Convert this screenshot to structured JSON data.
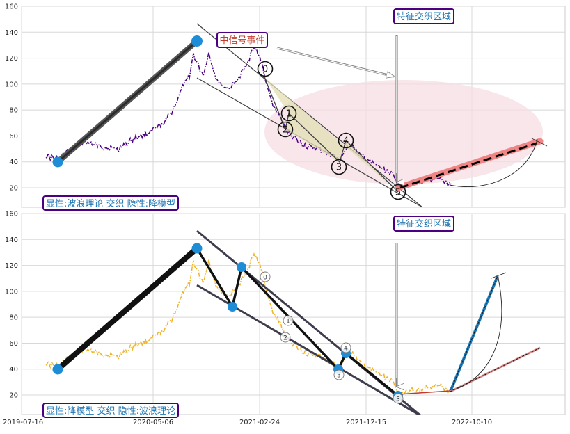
{
  "chart_data": [
    {
      "type": "line",
      "panel": "top",
      "ylim": [
        5,
        160
      ],
      "yticks": [
        20,
        40,
        60,
        80,
        100,
        120,
        140,
        160
      ],
      "grid": true,
      "price_color": "#4b0082",
      "wave_labels": [
        "0",
        "1",
        "2",
        "3",
        "4",
        "5"
      ],
      "boxes": {
        "legend": "显性:波浪理论 交织 隐性:降模型",
        "event": "中信号事件",
        "zone": "特征交织区域"
      },
      "colors": {
        "trend": "#404040",
        "zone_fill": "#f5dde3",
        "forecast": "#f08080",
        "box_border": "#4b0082",
        "box_text": "#1f77b4",
        "event_text": "#c0392b"
      }
    },
    {
      "type": "line",
      "panel": "bottom",
      "ylim": [
        5,
        160
      ],
      "yticks": [
        20,
        40,
        60,
        80,
        100,
        120,
        140,
        160
      ],
      "grid": true,
      "price_color": "#f0b429",
      "wave_labels": [
        "0",
        "1",
        "2",
        "3",
        "4",
        "5"
      ],
      "boxes": {
        "legend": "显性:降模型 交织 隐性:波浪理论",
        "zone": "特征交织区域"
      },
      "colors": {
        "trend": "#404040",
        "upper_forecast": "#1f77b4",
        "lower_forecast": "#c0392b",
        "box_border": "#4b0082",
        "box_text": "#1f77b4"
      }
    }
  ],
  "x_axis": {
    "labels": [
      "2019-07-16",
      "2020-05-06",
      "2021-02-24",
      "2021-12-15",
      "2022-10-10"
    ]
  }
}
